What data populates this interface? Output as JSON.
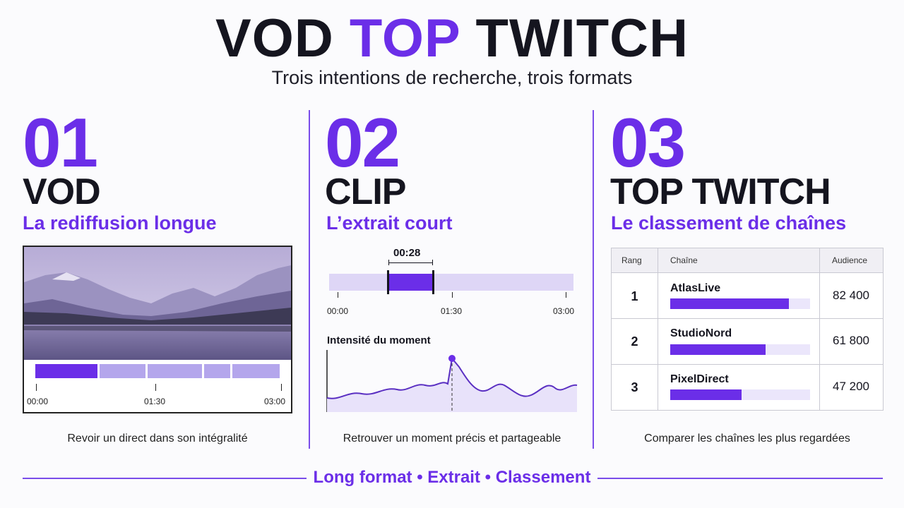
{
  "header": {
    "title_part1": "VOD",
    "title_part2": "TOP",
    "title_part3": "TWITCH",
    "subtitle": "Trois intentions de recherche, trois formats"
  },
  "colors": {
    "accent": "#6b2ee8",
    "dark": "#15151f",
    "light_accent": "#ded6f6"
  },
  "panels": [
    {
      "number": "01",
      "heading": "VOD",
      "subheading": "La rediffusion longue",
      "ticks": [
        "00:00",
        "01:30",
        "03:00"
      ],
      "caption": "Revoir un direct dans son intégralité",
      "image_icon": "mountain-lake-landscape"
    },
    {
      "number": "02",
      "heading": "CLIP",
      "subheading": "L’extrait court",
      "clip_duration": "00:28",
      "ticks": [
        "00:00",
        "01:30",
        "03:00"
      ],
      "chart_label": "Intensité du moment",
      "caption": "Retrouver un moment précis et partageable"
    },
    {
      "number": "03",
      "heading": "TOP TWITCH",
      "subheading": "Le classement de chaînes",
      "table": {
        "headers": [
          "Rang",
          "Chaîne",
          "Audience"
        ],
        "rows": [
          {
            "rank": "1",
            "channel": "AtlasLive",
            "audience": "82 400",
            "bar_fraction": 0.85
          },
          {
            "rank": "2",
            "channel": "StudioNord",
            "audience": "61 800",
            "bar_fraction": 0.68
          },
          {
            "rank": "3",
            "channel": "PixelDirect",
            "audience": "47 200",
            "bar_fraction": 0.51
          }
        ]
      },
      "caption": "Comparer les chaînes les plus regardées"
    }
  ],
  "footer": {
    "text": "Long format • Extrait • Classement"
  }
}
